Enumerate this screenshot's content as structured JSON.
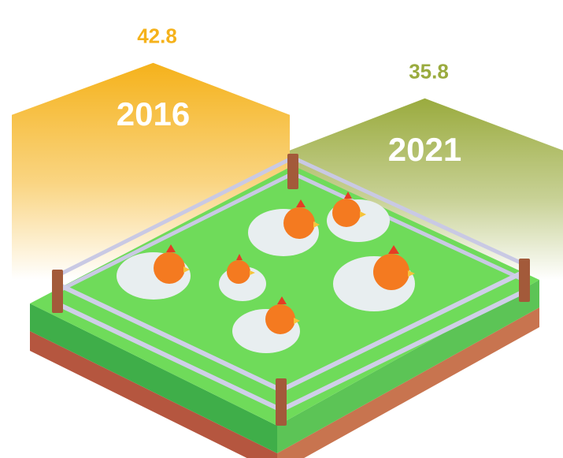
{
  "chart_data": {
    "type": "bar",
    "categories": [
      "2016",
      "2021"
    ],
    "values": [
      42.8,
      35.8
    ],
    "colors": [
      "#f5b21b",
      "#9aab3e"
    ]
  }
}
